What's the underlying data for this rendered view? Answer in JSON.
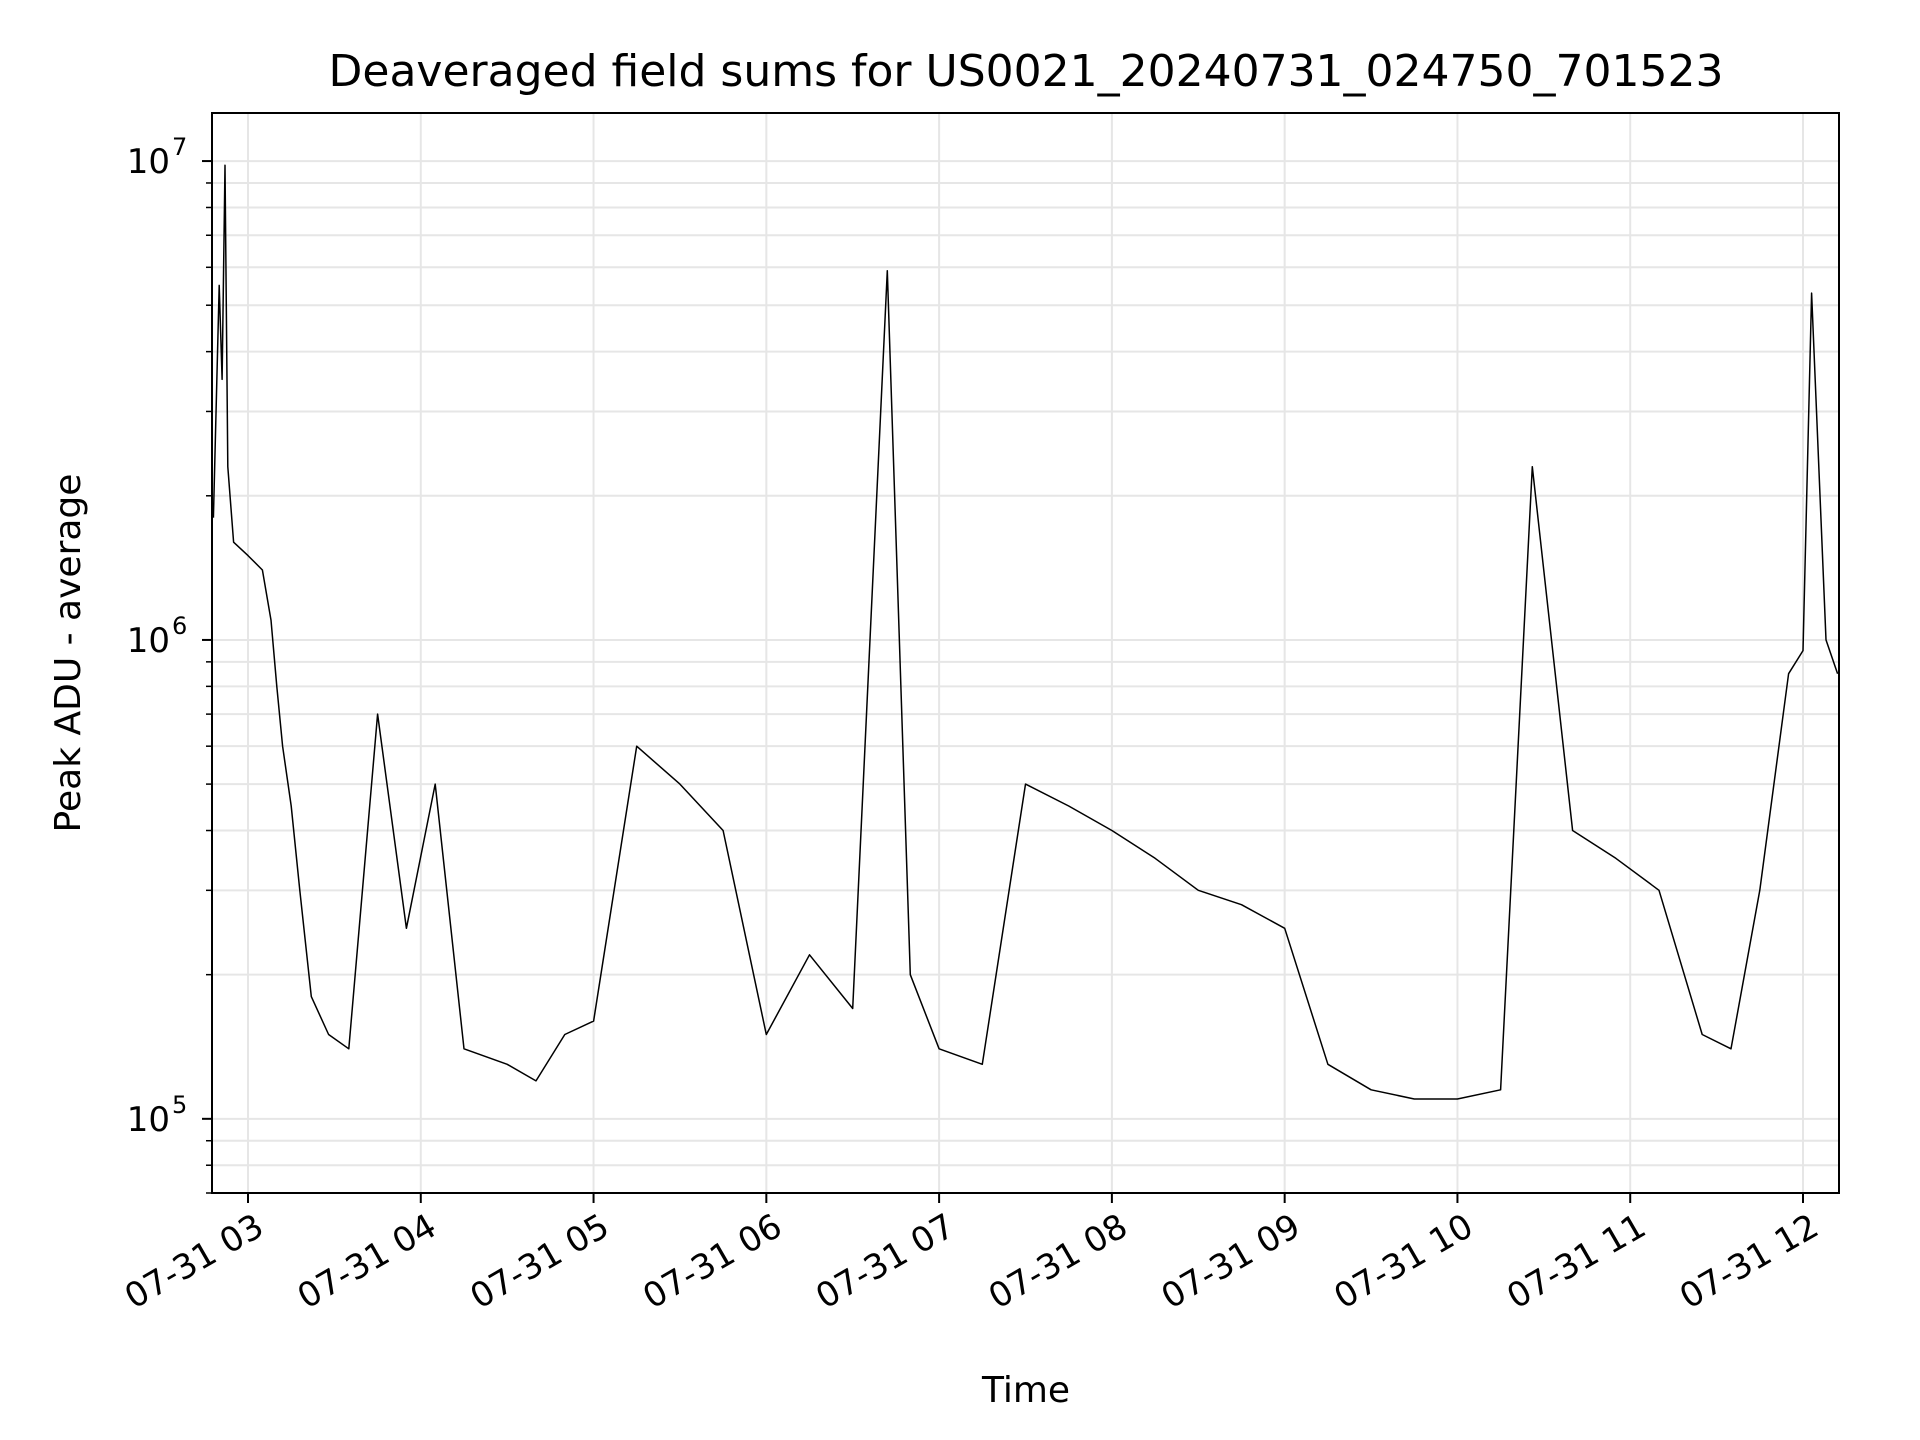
{
  "chart_data": {
    "type": "line",
    "title": "Deaveraged field sums for US0021_20240731_024750_701523",
    "xlabel": "Time",
    "ylabel": "Peak ADU - average",
    "yscale": "log",
    "ylim": [
      70000,
      12600000
    ],
    "xlim": [
      "2024-07-31 02:47:30",
      "2024-07-31 12:12:30"
    ],
    "grid": true,
    "line_color": "#000000",
    "grid_color": "#e6e6e6",
    "x_ticks": [
      {
        "t": "2024-07-31 03:00",
        "label": "07-31 03"
      },
      {
        "t": "2024-07-31 04:00",
        "label": "07-31 04"
      },
      {
        "t": "2024-07-31 05:00",
        "label": "07-31 05"
      },
      {
        "t": "2024-07-31 06:00",
        "label": "07-31 06"
      },
      {
        "t": "2024-07-31 07:00",
        "label": "07-31 07"
      },
      {
        "t": "2024-07-31 08:00",
        "label": "07-31 08"
      },
      {
        "t": "2024-07-31 09:00",
        "label": "07-31 09"
      },
      {
        "t": "2024-07-31 10:00",
        "label": "07-31 10"
      },
      {
        "t": "2024-07-31 11:00",
        "label": "07-31 11"
      },
      {
        "t": "2024-07-31 12:00",
        "label": "07-31 12"
      }
    ],
    "y_ticks": [
      {
        "value": 100000,
        "base": "10",
        "exp": "5"
      },
      {
        "value": 1000000,
        "base": "10",
        "exp": "6"
      },
      {
        "value": 10000000,
        "base": "10",
        "exp": "7"
      }
    ],
    "series": [
      {
        "x": [
          "2024-07-31 02:48",
          "2024-07-31 02:50",
          "2024-07-31 02:51",
          "2024-07-31 02:52",
          "2024-07-31 02:53",
          "2024-07-31 02:55",
          "2024-07-31 03:00",
          "2024-07-31 03:05",
          "2024-07-31 03:08",
          "2024-07-31 03:10",
          "2024-07-31 03:12",
          "2024-07-31 03:15",
          "2024-07-31 03:18",
          "2024-07-31 03:22",
          "2024-07-31 03:28",
          "2024-07-31 03:35",
          "2024-07-31 03:45",
          "2024-07-31 03:55",
          "2024-07-31 04:05",
          "2024-07-31 04:15",
          "2024-07-31 04:30",
          "2024-07-31 04:40",
          "2024-07-31 04:50",
          "2024-07-31 05:00",
          "2024-07-31 05:15",
          "2024-07-31 05:30",
          "2024-07-31 05:45",
          "2024-07-31 06:00",
          "2024-07-31 06:15",
          "2024-07-31 06:30",
          "2024-07-31 06:42",
          "2024-07-31 06:50",
          "2024-07-31 07:00",
          "2024-07-31 07:15",
          "2024-07-31 07:30",
          "2024-07-31 07:45",
          "2024-07-31 08:00",
          "2024-07-31 08:15",
          "2024-07-31 08:30",
          "2024-07-31 08:45",
          "2024-07-31 09:00",
          "2024-07-31 09:15",
          "2024-07-31 09:30",
          "2024-07-31 09:45",
          "2024-07-31 10:00",
          "2024-07-31 10:15",
          "2024-07-31 10:26",
          "2024-07-31 10:40",
          "2024-07-31 10:55",
          "2024-07-31 11:10",
          "2024-07-31 11:25",
          "2024-07-31 11:35",
          "2024-07-31 11:45",
          "2024-07-31 11:55",
          "2024-07-31 12:00",
          "2024-07-31 12:03",
          "2024-07-31 12:08",
          "2024-07-31 12:12"
        ],
        "y": [
          1800000,
          5500000,
          3500000,
          9800000,
          2300000,
          1600000,
          1500000,
          1400000,
          1100000,
          800000,
          600000,
          450000,
          300000,
          180000,
          150000,
          140000,
          700000,
          250000,
          500000,
          140000,
          130000,
          120000,
          150000,
          160000,
          600000,
          500000,
          400000,
          150000,
          220000,
          170000,
          5900000,
          200000,
          140000,
          130000,
          500000,
          450000,
          400000,
          350000,
          300000,
          280000,
          250000,
          130000,
          115000,
          110000,
          110000,
          115000,
          2300000,
          400000,
          350000,
          300000,
          150000,
          140000,
          300000,
          850000,
          950000,
          5300000,
          1000000,
          850000
        ]
      }
    ]
  }
}
